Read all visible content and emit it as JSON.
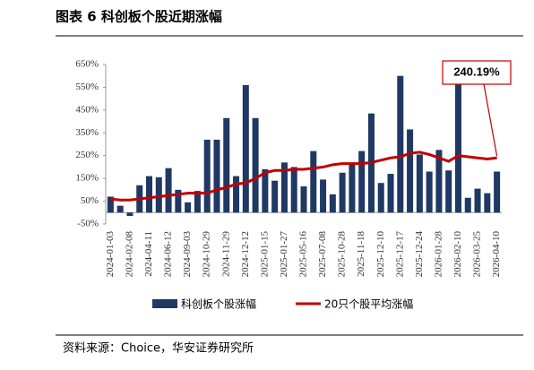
{
  "chart_data": {
    "type": "bar",
    "title": "图表 6 科创板个股近期涨幅",
    "source": "资料来源：Choice，华安证券研究所",
    "annotation": "240.19%",
    "categories": [
      "2024-01-03",
      null,
      "2024-02-08",
      null,
      "2024-04-11",
      null,
      "2024-06-12",
      null,
      "2024-09-03",
      null,
      "2024-10-29",
      null,
      "2024-11-29",
      null,
      "2024-12-12",
      null,
      "2025-01-15",
      null,
      "2025-01-27",
      null,
      "2025-05-16",
      null,
      "2025-07-08",
      null,
      "2025-10-28",
      null,
      "2025-11-18",
      null,
      "2025-12-10",
      null,
      "2025-12-17",
      null,
      "2025-12-24",
      null,
      "2026-01-28",
      null,
      "2026-02-10",
      null,
      "2026-03-25",
      null,
      "2026-04-10"
    ],
    "series": [
      {
        "name": "科创板个股涨幅",
        "type": "bar",
        "color": "#1f3864",
        "values": [
          70,
          30,
          -15,
          120,
          160,
          155,
          195,
          100,
          45,
          95,
          320,
          320,
          415,
          160,
          560,
          415,
          190,
          140,
          220,
          200,
          115,
          270,
          145,
          80,
          175,
          215,
          270,
          435,
          130,
          170,
          600,
          365,
          255,
          180,
          275,
          185,
          580,
          65,
          105,
          85,
          180
        ]
      },
      {
        "name": "20只个股平均涨幅",
        "type": "line",
        "color": "#c00000",
        "values": [
          60,
          55,
          55,
          60,
          65,
          70,
          75,
          80,
          85,
          85,
          85,
          100,
          110,
          125,
          130,
          150,
          175,
          185,
          185,
          190,
          190,
          195,
          200,
          210,
          215,
          215,
          215,
          220,
          230,
          240,
          245,
          260,
          265,
          255,
          240,
          225,
          250,
          245,
          240,
          235,
          240.19
        ]
      }
    ],
    "ylim": [
      -50,
      650
    ],
    "yticks": [
      {
        "value": -50,
        "label": "-50%"
      },
      {
        "value": 50,
        "label": "50%"
      },
      {
        "value": 150,
        "label": "150%"
      },
      {
        "value": 250,
        "label": "250%"
      },
      {
        "value": 350,
        "label": "350%"
      },
      {
        "value": 450,
        "label": "450%"
      },
      {
        "value": 550,
        "label": "550%"
      },
      {
        "value": 650,
        "label": "650%"
      }
    ],
    "grid": false
  }
}
